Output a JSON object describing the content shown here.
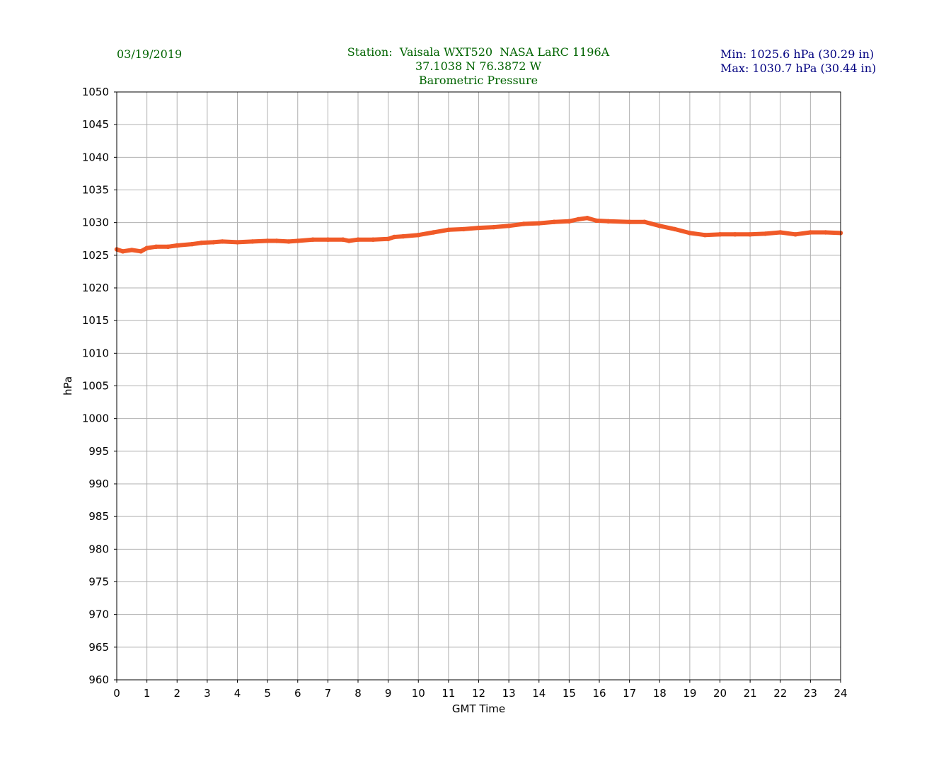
{
  "header": {
    "date": "03/19/2019",
    "station_line": "Station:  Vaisala WXT520  NASA LaRC 1196A",
    "coords_line": "37.1038 N 76.3872 W",
    "title": "Barometric Pressure",
    "min_line": "Min: 1025.6 hPa (30.29 in)",
    "max_line": "Max: 1030.7 hPa (30.44 in)"
  },
  "colors": {
    "series": "#f05a28",
    "header_green": "#006400",
    "header_navy": "#000080",
    "grid": "#b0b0b0"
  },
  "chart_data": {
    "type": "line",
    "title": "Barometric Pressure",
    "xlabel": "GMT Time",
    "ylabel": "hPa",
    "xlim": [
      0,
      24
    ],
    "ylim": [
      960,
      1050
    ],
    "xticks": [
      0,
      1,
      2,
      3,
      4,
      5,
      6,
      7,
      8,
      9,
      10,
      11,
      12,
      13,
      14,
      15,
      16,
      17,
      18,
      19,
      20,
      21,
      22,
      23,
      24
    ],
    "yticks": [
      960,
      965,
      970,
      975,
      980,
      985,
      990,
      995,
      1000,
      1005,
      1010,
      1015,
      1020,
      1025,
      1030,
      1035,
      1040,
      1045,
      1050
    ],
    "grid": true,
    "series": [
      {
        "x": [
          0,
          0.2,
          0.5,
          0.8,
          1.0,
          1.3,
          1.7,
          2.0,
          2.5,
          2.8,
          3.2,
          3.5,
          4.0,
          4.5,
          5.0,
          5.3,
          5.7,
          6.0,
          6.5,
          7.0,
          7.5,
          7.7,
          8.0,
          8.5,
          9.0,
          9.2,
          9.5,
          10.0,
          10.5,
          11.0,
          11.5,
          12.0,
          12.5,
          13.0,
          13.5,
          14.0,
          14.5,
          15.0,
          15.3,
          15.6,
          15.9,
          16.3,
          17.0,
          17.5,
          18.0,
          18.5,
          19.0,
          19.5,
          20.0,
          20.5,
          21.0,
          21.5,
          22.0,
          22.5,
          23.0,
          23.5,
          24.0
        ],
        "y": [
          1025.9,
          1025.6,
          1025.8,
          1025.6,
          1026.1,
          1026.3,
          1026.3,
          1026.5,
          1026.7,
          1026.9,
          1027.0,
          1027.1,
          1027.0,
          1027.1,
          1027.2,
          1027.2,
          1027.1,
          1027.2,
          1027.4,
          1027.4,
          1027.4,
          1027.2,
          1027.4,
          1027.4,
          1027.5,
          1027.8,
          1027.9,
          1028.1,
          1028.5,
          1028.9,
          1029.0,
          1029.2,
          1029.3,
          1029.5,
          1029.8,
          1029.9,
          1030.1,
          1030.2,
          1030.5,
          1030.7,
          1030.3,
          1030.2,
          1030.1,
          1030.1,
          1029.5,
          1029.0,
          1028.4,
          1028.1,
          1028.2,
          1028.2,
          1028.2,
          1028.3,
          1028.5,
          1028.2,
          1028.5,
          1028.5,
          1028.4
        ]
      }
    ]
  }
}
